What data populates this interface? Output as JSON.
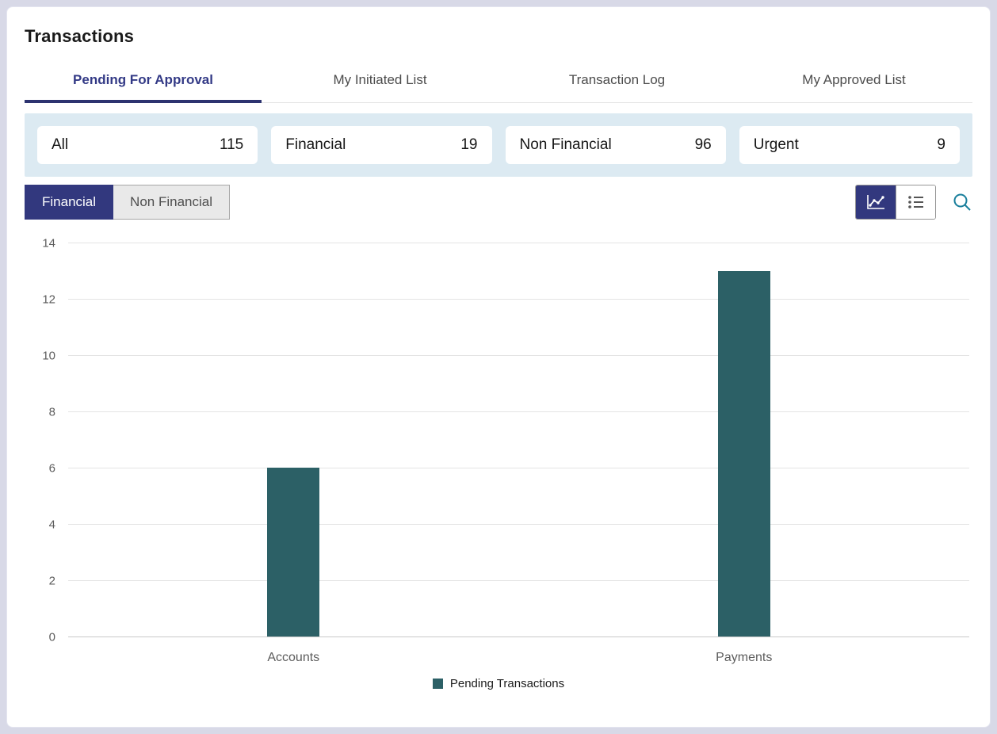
{
  "header": {
    "title": "Transactions"
  },
  "tabs": [
    {
      "label": "Pending For Approval",
      "active": true
    },
    {
      "label": "My Initiated List",
      "active": false
    },
    {
      "label": "Transaction Log",
      "active": false
    },
    {
      "label": "My Approved List",
      "active": false
    }
  ],
  "summary_cards": [
    {
      "label": "All",
      "count": "115"
    },
    {
      "label": "Financial",
      "count": "19"
    },
    {
      "label": "Non Financial",
      "count": "96"
    },
    {
      "label": "Urgent",
      "count": "9"
    }
  ],
  "segmented_control": {
    "options": [
      {
        "label": "Financial",
        "active": true
      },
      {
        "label": "Non Financial",
        "active": false
      }
    ]
  },
  "view_toggle": {
    "icons": [
      "line-chart-icon",
      "list-icon"
    ],
    "active": "line-chart-icon"
  },
  "search": {
    "icon": "search-icon"
  },
  "chart_data": {
    "type": "bar",
    "categories": [
      "Accounts",
      "Payments"
    ],
    "values": [
      6,
      13
    ],
    "series_name": "Pending Transactions",
    "ylim": [
      0,
      14
    ],
    "yticks": [
      0,
      2,
      4,
      6,
      8,
      10,
      12,
      14
    ],
    "grid": true,
    "legend_position": "bottom",
    "bar_color": "#2c6066"
  },
  "colors": {
    "accent": "#32387e",
    "tab_active": "#333a86",
    "band_bg": "#dceaf2",
    "bar": "#2c6066",
    "search_icon": "#1a7f9c"
  }
}
